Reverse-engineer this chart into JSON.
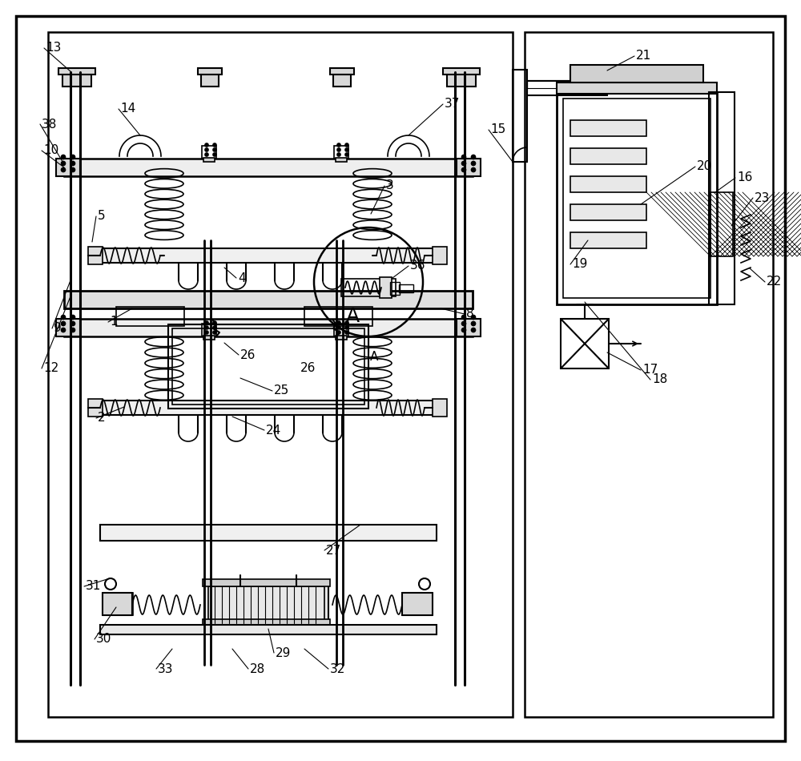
{
  "bg_color": "#ffffff",
  "line_color": "#000000",
  "gray_color": "#aaaaaa",
  "light_gray": "#cccccc",
  "figure_width": 10.0,
  "figure_height": 9.5,
  "title": ""
}
